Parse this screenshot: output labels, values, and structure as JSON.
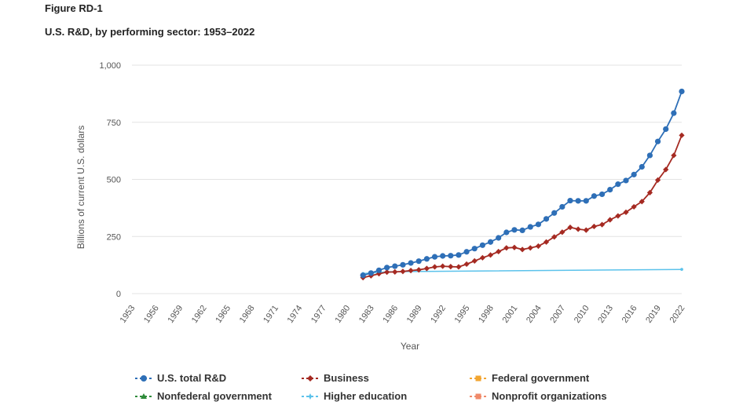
{
  "figure_label": "Figure RD-1",
  "title": "U.S. R&D, by performing sector: 1953–2022",
  "chart_data": {
    "type": "line",
    "title": "U.S. R&D, by performing sector: 1953–2022",
    "xlabel": "Year",
    "ylabel": "Billions of current U.S. dollars",
    "ylim": [
      0,
      1000
    ],
    "xlim": [
      1953,
      2022
    ],
    "y_ticks": [
      0,
      250,
      500,
      750,
      1000
    ],
    "y_tick_labels": [
      "0",
      "250",
      "500",
      "750",
      "1,000"
    ],
    "x_ticks": [
      "1953",
      "1956",
      "1959",
      "1962",
      "1965",
      "1968",
      "1971",
      "1974",
      "1977",
      "1980",
      "1983",
      "1986",
      "1989",
      "1992",
      "1995",
      "1998",
      "2001",
      "2004",
      "2007",
      "2010",
      "2013",
      "2016",
      "2019",
      "2022"
    ],
    "grid": true,
    "legend_position": "bottom",
    "series": [
      {
        "name": "U.S. total R&D",
        "color": "#2e6fb7",
        "marker": "circle",
        "x": [
          1982,
          1983,
          1984,
          1985,
          1986,
          1987,
          1988,
          1989,
          1990,
          1991,
          1992,
          1993,
          1994,
          1995,
          1996,
          1997,
          1998,
          1999,
          2000,
          2001,
          2002,
          2003,
          2004,
          2005,
          2006,
          2007,
          2008,
          2009,
          2010,
          2011,
          2012,
          2013,
          2014,
          2015,
          2016,
          2017,
          2018,
          2019,
          2020,
          2021,
          2022
        ],
        "y": [
          80,
          90,
          102,
          114,
          120,
          126,
          134,
          142,
          152,
          161,
          165,
          166,
          169,
          183,
          197,
          212,
          226,
          244,
          268,
          279,
          277,
          292,
          303,
          327,
          353,
          380,
          407,
          406,
          406,
          427,
          435,
          455,
          479,
          495,
          521,
          555,
          605,
          666,
          720,
          790,
          885
        ]
      },
      {
        "name": "Business",
        "color": "#a52a22",
        "marker": "diamond",
        "x": [
          1982,
          1983,
          1984,
          1985,
          1986,
          1987,
          1988,
          1989,
          1990,
          1991,
          1992,
          1993,
          1994,
          1995,
          1996,
          1997,
          1998,
          1999,
          2000,
          2001,
          2002,
          2003,
          2004,
          2005,
          2006,
          2007,
          2008,
          2009,
          2010,
          2011,
          2012,
          2013,
          2014,
          2015,
          2016,
          2017,
          2018,
          2019,
          2020,
          2021,
          2022
        ],
        "y": [
          70,
          78,
          87,
          94,
          95,
          97,
          101,
          104,
          110,
          117,
          120,
          118,
          117,
          129,
          143,
          157,
          169,
          184,
          200,
          202,
          193,
          200,
          208,
          226,
          248,
          269,
          290,
          282,
          278,
          294,
          302,
          323,
          340,
          356,
          380,
          403,
          442,
          497,
          543,
          605,
          693
        ]
      },
      {
        "name": "Federal government",
        "color": "#f2a531",
        "marker": "square",
        "x": [],
        "y": []
      },
      {
        "name": "Nonfederal government",
        "color": "#2e8b3a",
        "marker": "triangle",
        "x": [],
        "y": []
      },
      {
        "name": "Higher education",
        "color": "#5bc2eb",
        "marker": "star",
        "x": [
          1982,
          1983,
          1984,
          1985,
          2022
        ],
        "y": [
          88,
          90,
          92,
          96,
          106
        ]
      },
      {
        "name": "Nonprofit organizations",
        "color": "#f08a6a",
        "marker": "square",
        "x": [],
        "y": []
      }
    ]
  },
  "legend": [
    {
      "label": "U.S. total R&D",
      "color": "#2e6fb7",
      "marker": "circle"
    },
    {
      "label": "Business",
      "color": "#a52a22",
      "marker": "diamond"
    },
    {
      "label": "Federal government",
      "color": "#f2a531",
      "marker": "square"
    },
    {
      "label": "Nonfederal government",
      "color": "#2e8b3a",
      "marker": "triangle"
    },
    {
      "label": "Higher education",
      "color": "#5bc2eb",
      "marker": "star"
    },
    {
      "label": "Nonprofit organizations",
      "color": "#f08a6a",
      "marker": "square"
    }
  ]
}
